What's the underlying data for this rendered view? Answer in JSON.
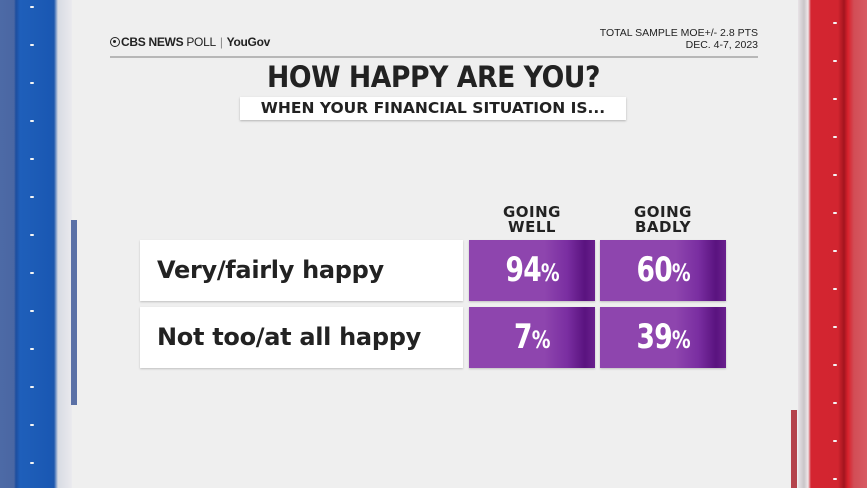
{
  "header": {
    "logo_brand": "CBS NEWS",
    "logo_poll": "POLL",
    "logo_partner": "YouGov",
    "moe": "TOTAL SAMPLE MOE+/- 2.8 PTS",
    "date": "DEC. 4-7, 2023"
  },
  "title": "HOW HAPPY ARE YOU?",
  "subtitle": "WHEN YOUR FINANCIAL SITUATION IS...",
  "columns": [
    {
      "line1": "GOING",
      "line2": "WELL"
    },
    {
      "line1": "GOING",
      "line2": "BADLY"
    }
  ],
  "rows": [
    {
      "label": "Very/fairly happy",
      "values": [
        "94",
        "60"
      ]
    },
    {
      "label": "Not too/at all happy",
      "values": [
        "7",
        "39"
      ]
    }
  ],
  "percent_sign": "%",
  "colors": {
    "cell_purple": "#8e45ae",
    "cell_purple_dark": "#5a137f",
    "left_rail_blue": "#1f5fba",
    "right_rail_red": "#d42530"
  },
  "chart_data": {
    "type": "table",
    "title": "HOW HAPPY ARE YOU?",
    "subtitle": "WHEN YOUR FINANCIAL SITUATION IS...",
    "categories": [
      "Very/fairly happy",
      "Not too/at all happy"
    ],
    "series": [
      {
        "name": "GOING WELL",
        "values": [
          94,
          7
        ]
      },
      {
        "name": "GOING BADLY",
        "values": [
          60,
          39
        ]
      }
    ],
    "unit": "%",
    "notes": [
      "TOTAL SAMPLE MOE+/- 2.8 PTS",
      "DEC. 4-7, 2023"
    ],
    "source": "CBS NEWS POLL | YouGov"
  }
}
